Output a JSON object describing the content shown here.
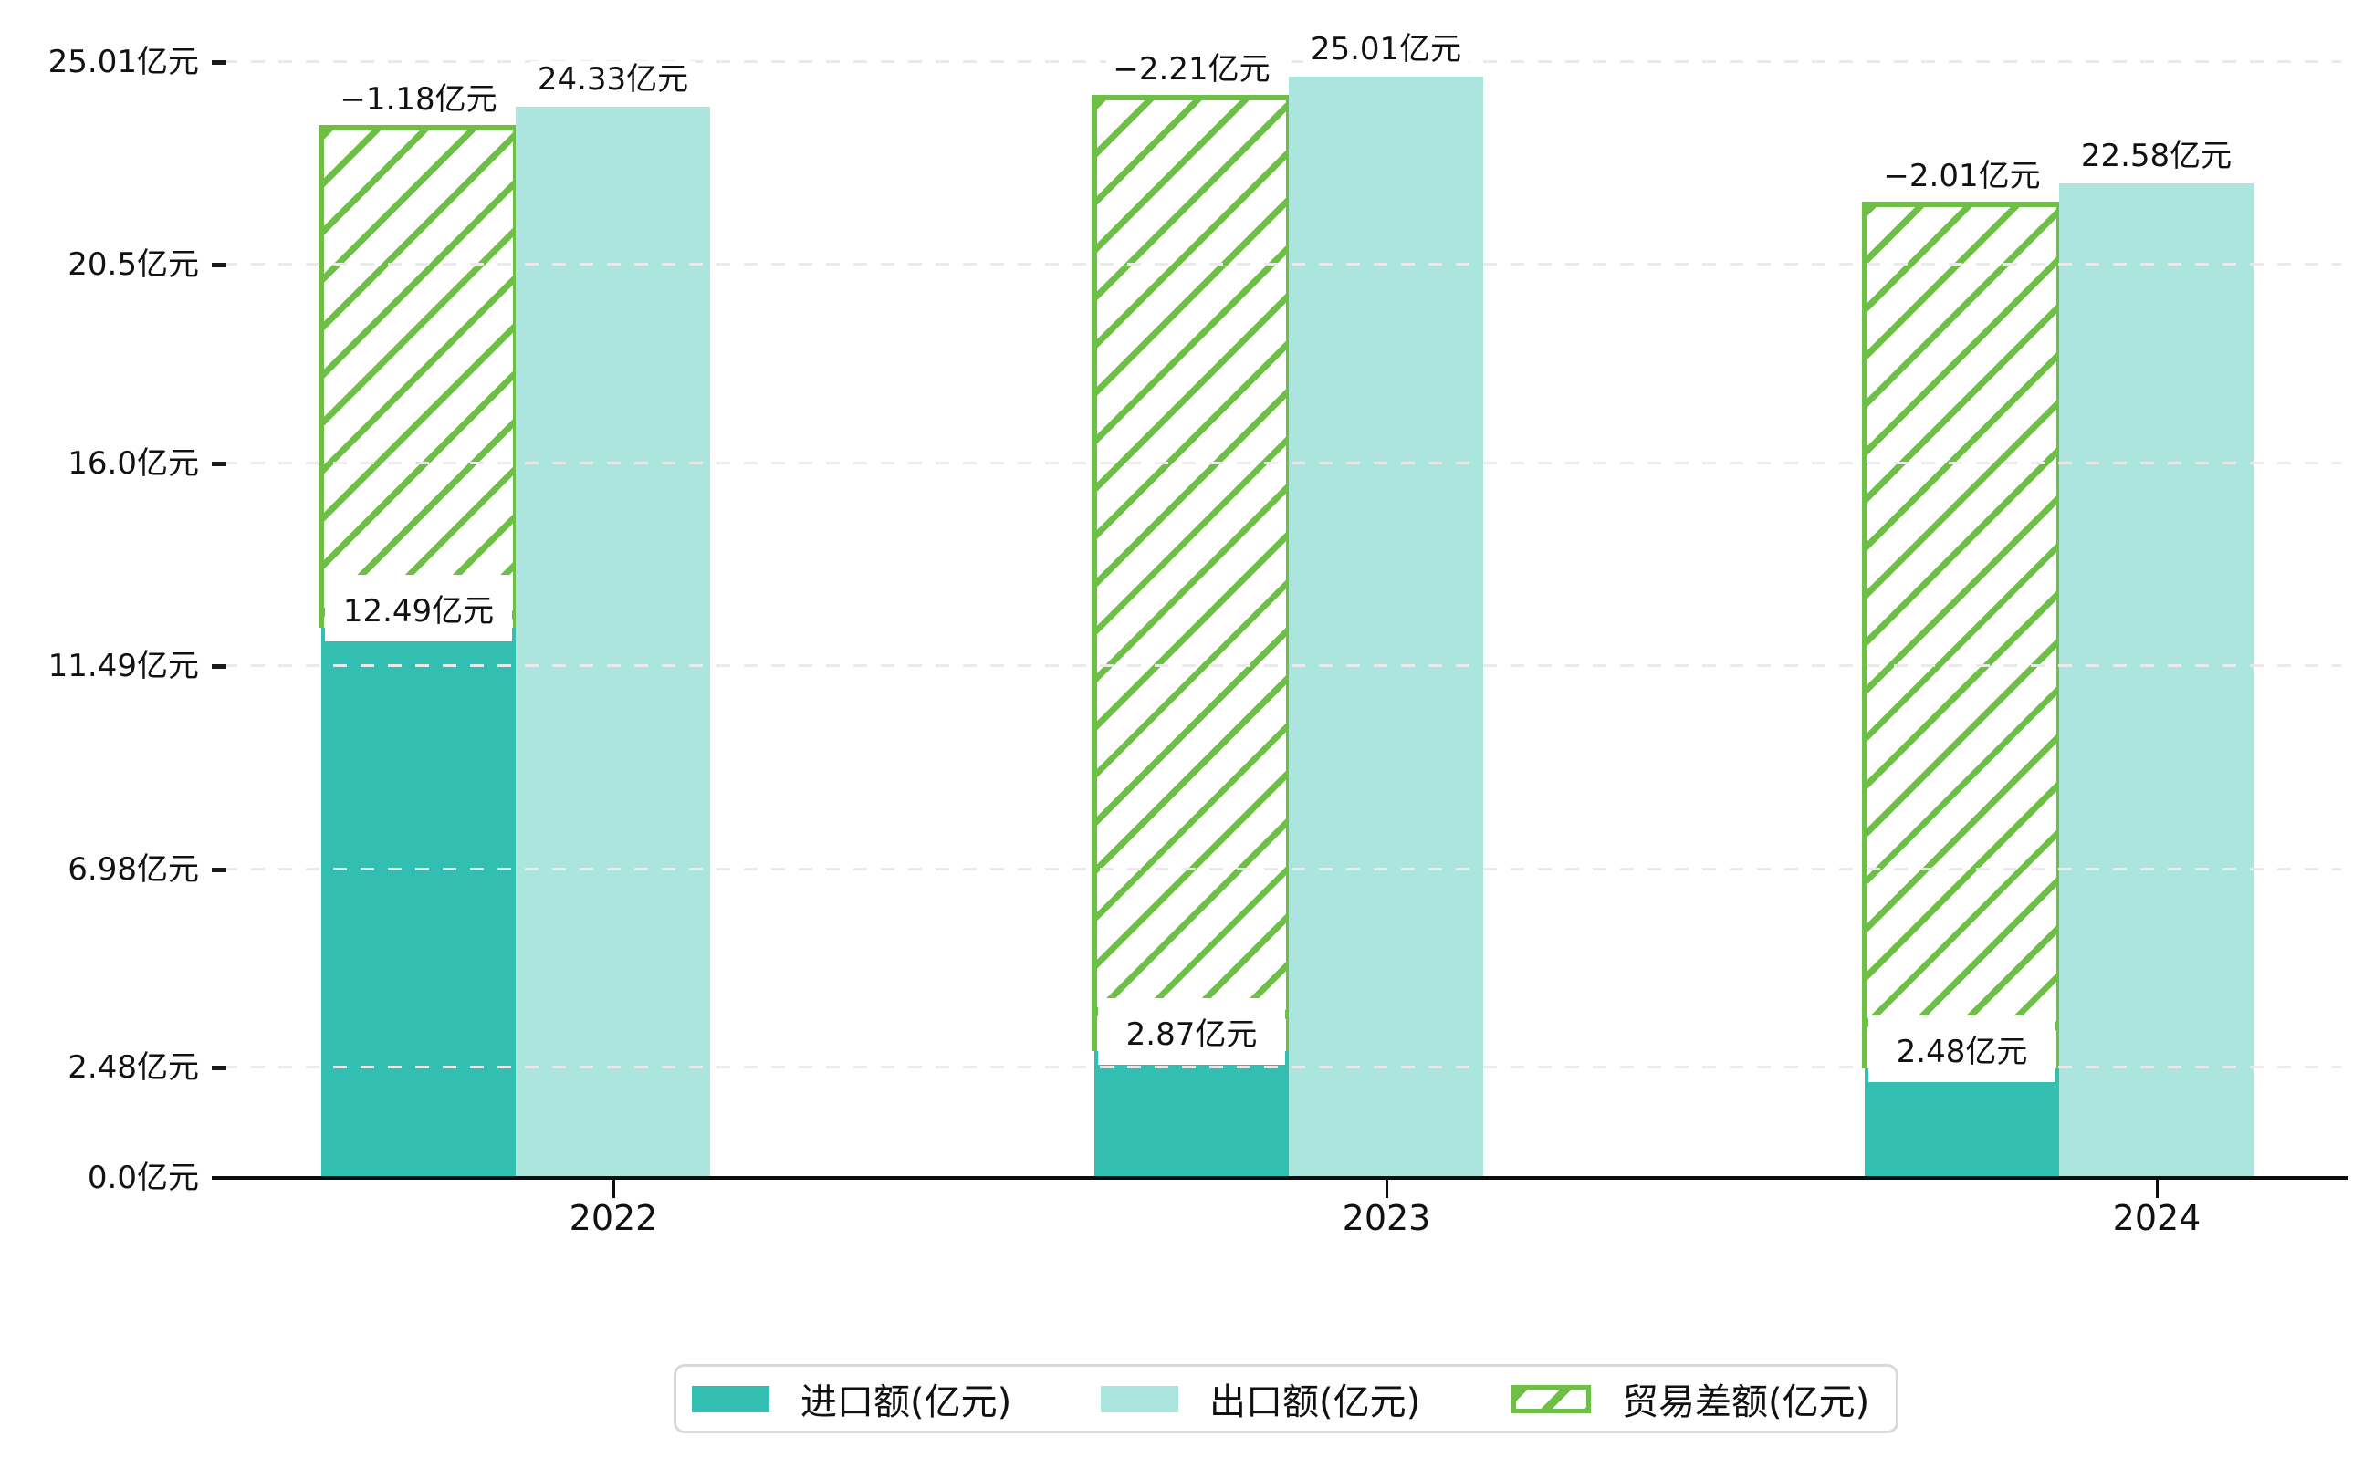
{
  "chart_data": {
    "type": "bar",
    "title": "",
    "categories": [
      "2022",
      "2023",
      "2024"
    ],
    "series": [
      {
        "name": "进口额(亿元)",
        "values": [
          12.49,
          2.87,
          2.48
        ],
        "color": "#32bfb2",
        "style": "solid"
      },
      {
        "name": "出口额(亿元)",
        "values": [
          24.33,
          25.01,
          22.58
        ],
        "color": "#abe5de",
        "style": "solid"
      },
      {
        "name": "贸易差额(亿元)",
        "values": [
          -1.18,
          -2.21,
          -2.01
        ],
        "color": "#6dbf45",
        "style": "hatched-range-between-import-and-export"
      }
    ],
    "data_labels": {
      "import": [
        "12.49亿元",
        "2.87亿元",
        "2.48亿元"
      ],
      "export": [
        "24.33亿元",
        "25.01亿元",
        "22.58亿元"
      ],
      "balance": [
        "−1.18亿元",
        "−2.21亿元",
        "−2.01亿元"
      ]
    },
    "y_ticks": [
      "0.0亿元",
      "2.48亿元",
      "6.98亿元",
      "11.49亿元",
      "16.0亿元",
      "20.5亿元",
      "25.01亿元"
    ],
    "y_tick_values": [
      0.0,
      2.48,
      6.98,
      11.49,
      16.0,
      20.5,
      25.01
    ],
    "ylim": [
      0,
      25.01
    ],
    "axis_unit": "亿元",
    "grid": true,
    "legend_position": "bottom",
    "legend": [
      "进口额(亿元)",
      "出口额(亿元)",
      "贸易差额(亿元)"
    ],
    "colors": {
      "import": "#32bfb2",
      "export": "#abe5de",
      "balance": "#6dbf45",
      "gridline": "#eaeaea",
      "axis": "#0c0c0c",
      "text": "#111111",
      "legend_border": "#d9d9d9",
      "label_background": "#ffffff"
    }
  }
}
